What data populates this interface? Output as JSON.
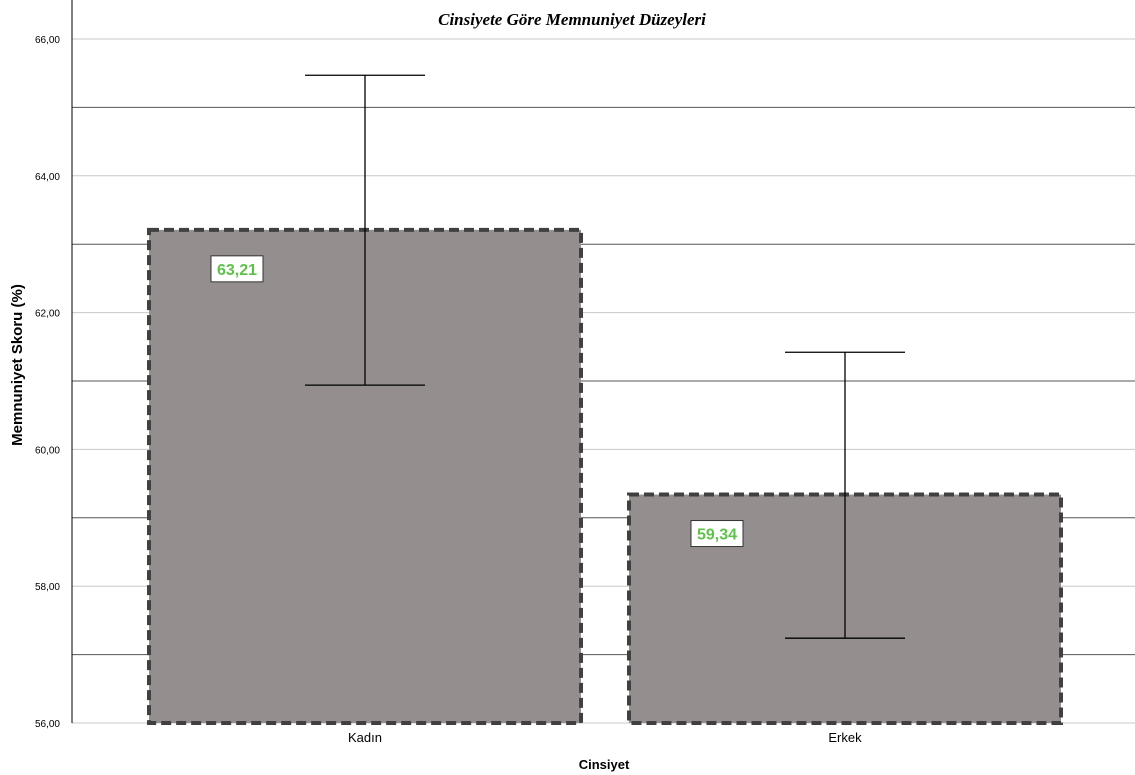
{
  "chart_data": {
    "type": "bar",
    "title": "Cinsiyete Göre Memnuniyet Düzeyleri",
    "xlabel": "Cinsiyet",
    "ylabel": "Memnuniyet Skoru (%)",
    "categories": [
      "Kadın",
      "Erkek"
    ],
    "values": [
      63.21,
      59.34
    ],
    "value_labels": [
      "63,21",
      "59,34"
    ],
    "error_bars": [
      {
        "low": 60.94,
        "high": 65.47
      },
      {
        "low": 57.24,
        "high": 61.42
      }
    ],
    "ylim": [
      56,
      66
    ],
    "yticks": [
      56,
      58,
      60,
      62,
      64,
      66
    ],
    "ytick_labels": [
      "56,00",
      "58,00",
      "60,00",
      "62,00",
      "64,00",
      "66,00"
    ],
    "grid": true,
    "bar_color": "#948f8e",
    "bar_border_color": "#404040",
    "label_color": "#5ec24a"
  }
}
